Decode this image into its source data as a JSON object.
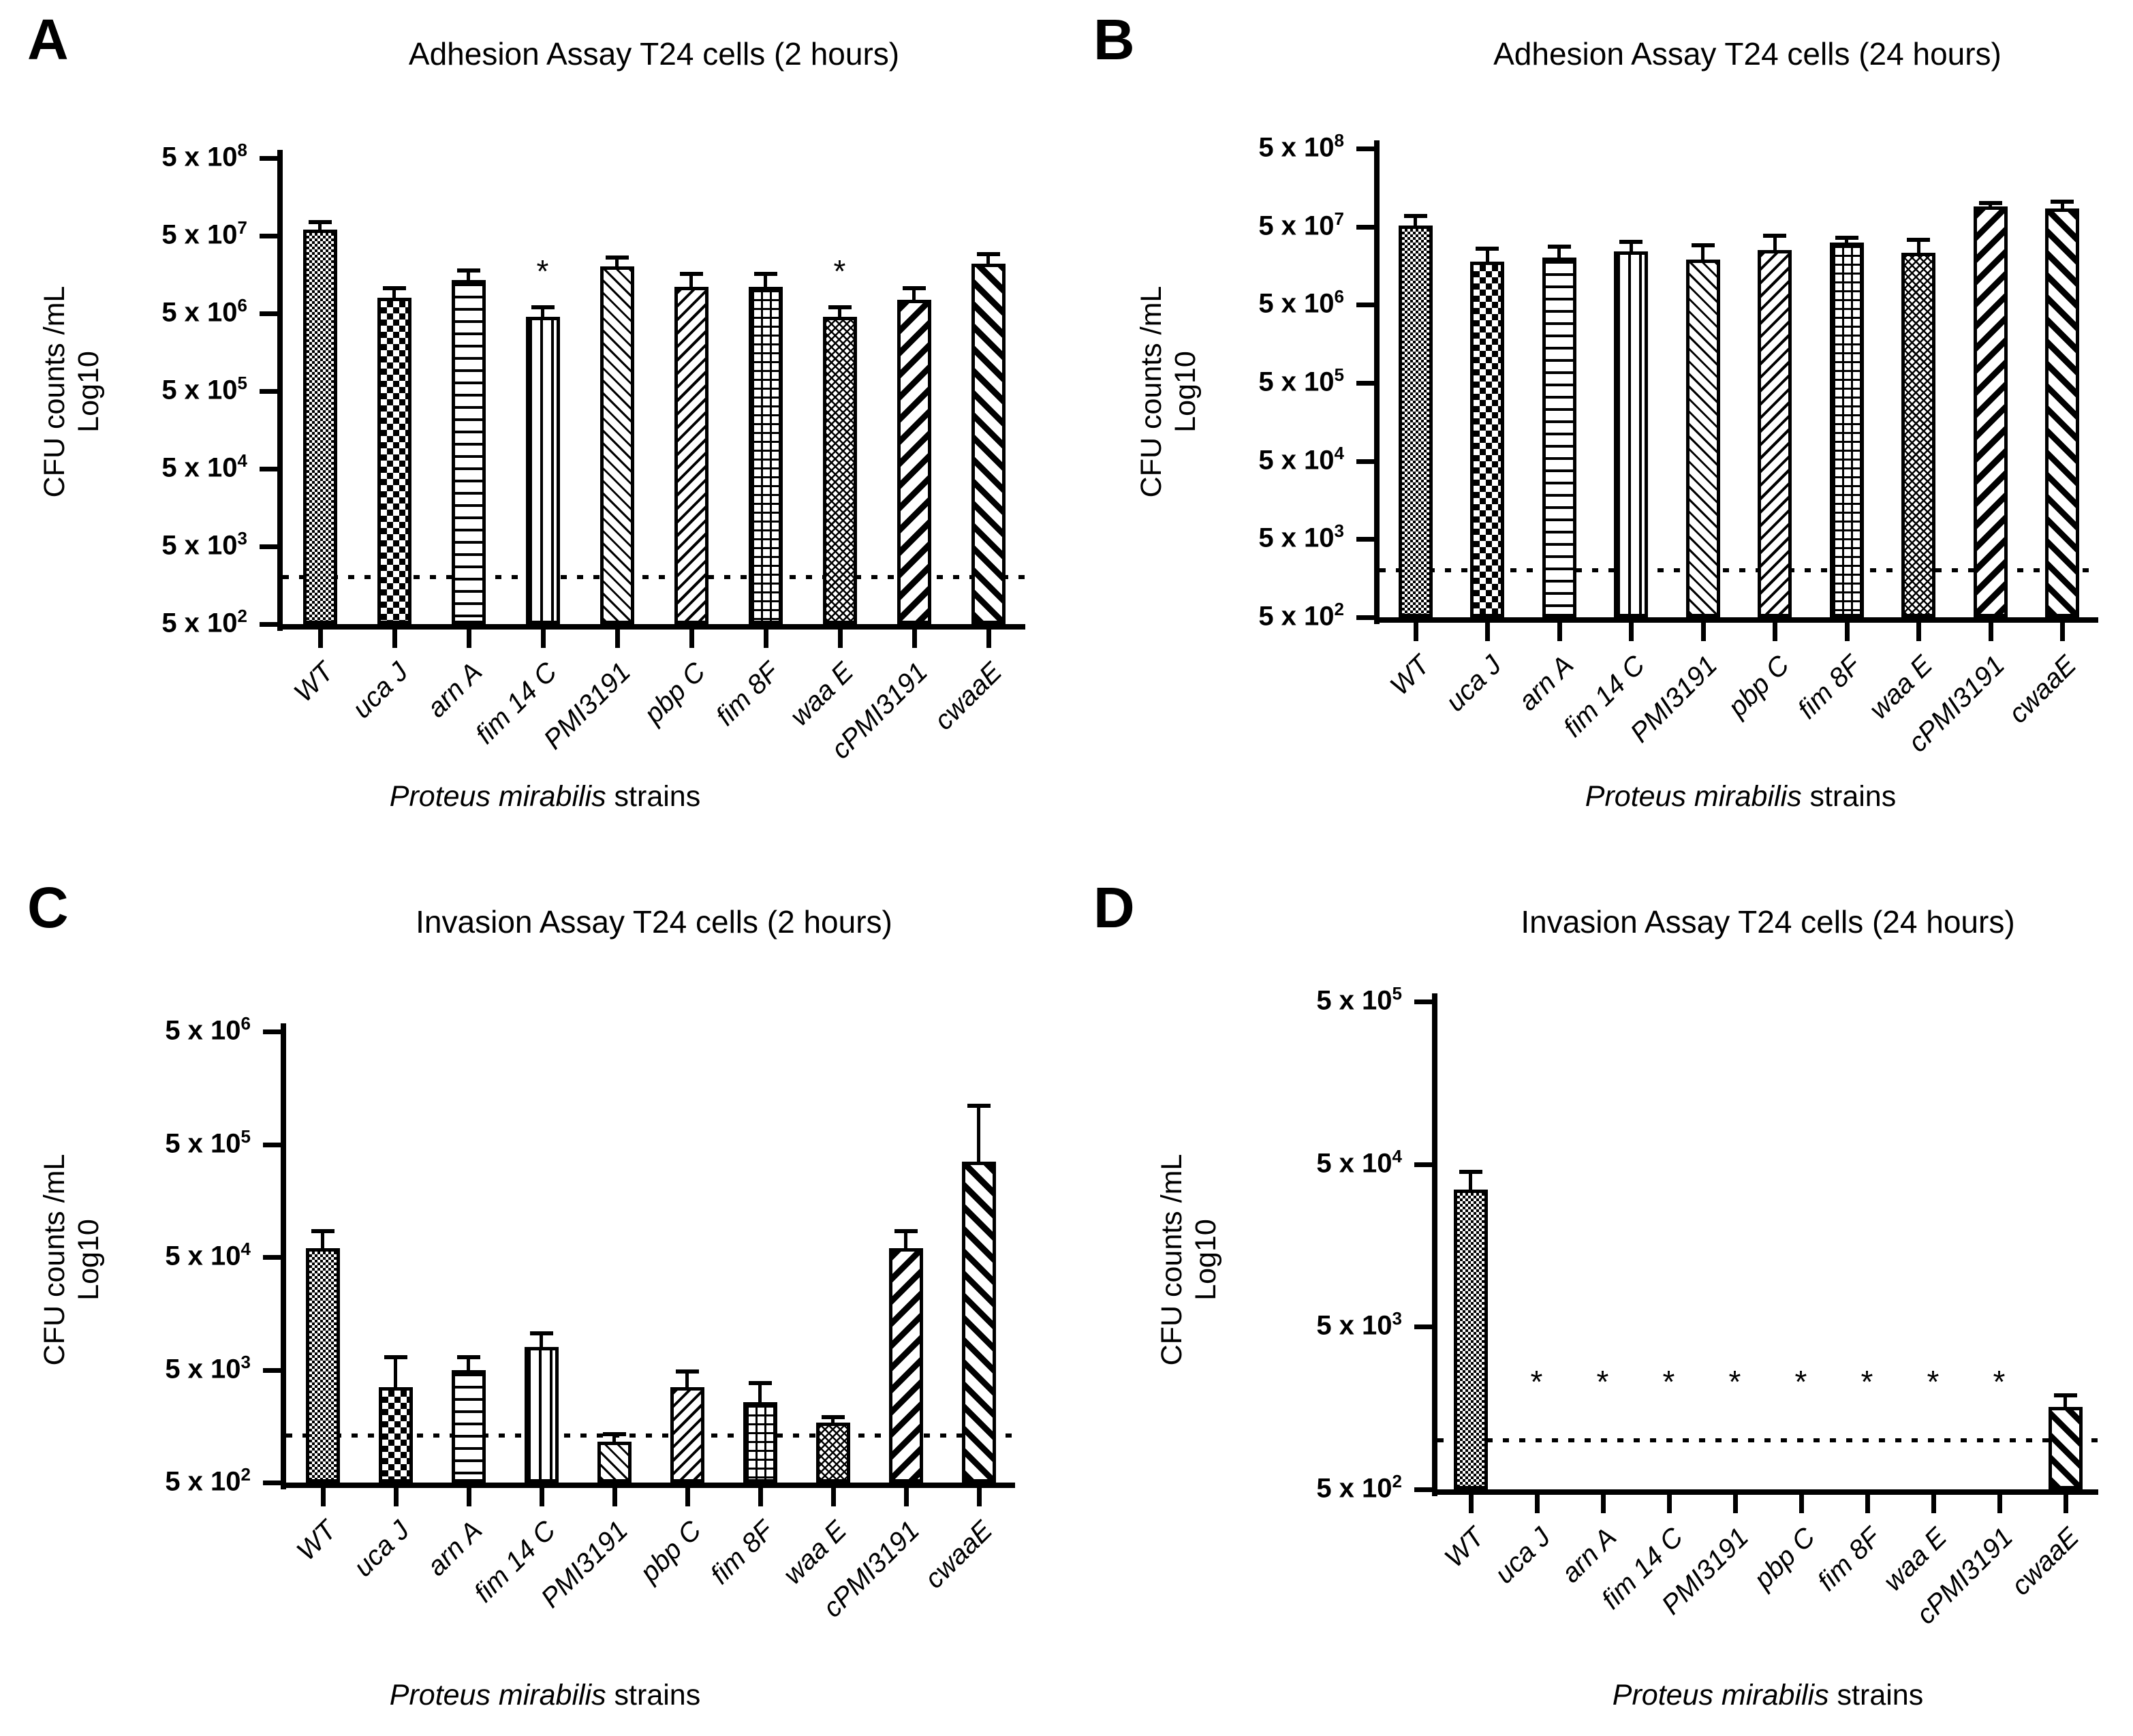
{
  "colors": {
    "ink": "#000000",
    "background": "#ffffff"
  },
  "sig_marker": "*",
  "bar_patterns": [
    "fine-check",
    "checkerboard",
    "horizontal-lines",
    "vertical-lines",
    "thin-diagonal-up",
    "diagonal-down",
    "grid",
    "diagonal-crosshatch",
    "thick-diagonal-down",
    "thick-diagonal-up"
  ],
  "chart_data": [
    {
      "type": "bar",
      "panel": "A",
      "title": "Adhesion Assay T24 cells (2 hours)",
      "ylabel": "CFU counts /mL",
      "ylabel2": "Log10",
      "xlabel_italic": "Proteus mirabilis",
      "xlabel_rest": " strains",
      "yscale": "log",
      "ymin": 500,
      "ymax": 500000000,
      "ytick_coefficient": "5 x 10",
      "ytick_exponents": [
        8,
        7,
        6,
        5,
        4,
        3,
        2
      ],
      "ytick_labels": [
        "5 x 10⁸",
        "5 x 10⁷",
        "5 x 10⁶",
        "5 x 10⁵",
        "5 x 10⁴",
        "5 x 10³",
        "5 x 10²"
      ],
      "grid": false,
      "legend": "none",
      "threshold_line": 2000,
      "categories": [
        "WT",
        "uca J",
        "arn A",
        "fim 14 C",
        "PMI3191",
        "pbp C",
        "fim 8F",
        "waa E",
        "cPMI3191",
        "cwaaE"
      ],
      "values": [
        60000000,
        8000000,
        13500000,
        4500000,
        20000000,
        11000000,
        11000000,
        4500000,
        7500000,
        22000000
      ],
      "errors_top": [
        75000000,
        10500000,
        18000000,
        6000000,
        26000000,
        16000000,
        16000000,
        6000000,
        10500000,
        29000000
      ],
      "significance": [
        false,
        false,
        false,
        true,
        false,
        false,
        false,
        true,
        false,
        false
      ]
    },
    {
      "type": "bar",
      "panel": "B",
      "title": "Adhesion Assay T24 cells (24 hours)",
      "ylabel": "CFU counts /mL",
      "ylabel2": "Log10",
      "xlabel_italic": "Proteus mirabilis",
      "xlabel_rest": " strains",
      "yscale": "log",
      "ymin": 500,
      "ymax": 500000000,
      "ytick_coefficient": "5 x 10",
      "ytick_exponents": [
        8,
        7,
        6,
        5,
        4,
        3,
        2
      ],
      "ytick_labels": [
        "5 x 10⁸",
        "5 x 10⁷",
        "5 x 10⁶",
        "5 x 10⁵",
        "5 x 10⁴",
        "5 x 10³",
        "5 x 10²"
      ],
      "grid": false,
      "legend": "none",
      "threshold_line": 2000,
      "categories": [
        "WT",
        "uca J",
        "arn A",
        "fim 14 C",
        "PMI3191",
        "pbp C",
        "fim 8F",
        "waa E",
        "cPMI3191",
        "cwaaE"
      ],
      "values": [
        52000000,
        18000000,
        20000000,
        24000000,
        19000000,
        25000000,
        31000000,
        23000000,
        90000000,
        85000000
      ],
      "errors_top": [
        68000000,
        26000000,
        28000000,
        32000000,
        29000000,
        38000000,
        36000000,
        34000000,
        100000000,
        105000000
      ],
      "significance": [
        false,
        false,
        false,
        false,
        false,
        false,
        false,
        false,
        false,
        false
      ]
    },
    {
      "type": "bar",
      "panel": "C",
      "title": "Invasion Assay T24 cells (2 hours)",
      "ylabel": "CFU counts /mL",
      "ylabel2": "Log10",
      "xlabel_italic": "Proteus mirabilis",
      "xlabel_rest": " strains",
      "yscale": "log",
      "ymin": 500,
      "ymax": 5000000,
      "ytick_coefficient": "5 x 10",
      "ytick_exponents": [
        6,
        5,
        4,
        3,
        2
      ],
      "ytick_labels": [
        "5 x 10⁶",
        "5 x 10⁵",
        "5 x 10⁴",
        "5 x 10³",
        "5 x 10²"
      ],
      "grid": false,
      "legend": "none",
      "threshold_line": 1300,
      "categories": [
        "WT",
        "uca J",
        "arn A",
        "fim 14 C",
        "PMI3191",
        "pbp C",
        "fim 8F",
        "waa E",
        "cPMI3191",
        "cwaaE"
      ],
      "values": [
        60000,
        3500,
        5000,
        8000,
        1150,
        3500,
        2600,
        1700,
        60000,
        350000
      ],
      "errors_top": [
        85000,
        6500,
        6500,
        10500,
        1350,
        4800,
        3800,
        1900,
        85000,
        1100000
      ],
      "significance": [
        false,
        false,
        false,
        false,
        false,
        false,
        false,
        false,
        false,
        false
      ]
    },
    {
      "type": "bar",
      "panel": "D",
      "title": "Invasion Assay T24 cells (24 hours)",
      "ylabel": "CFU counts /mL",
      "ylabel2": "Log10",
      "xlabel_italic": "Proteus mirabilis",
      "xlabel_rest": " strains",
      "yscale": "log",
      "ymin": 500,
      "ymax": 500000,
      "ytick_coefficient": "5 x 10",
      "ytick_exponents": [
        5,
        4,
        3,
        2
      ],
      "ytick_labels": [
        "5 x 10⁵",
        "5 x 10⁴",
        "5 x 10³",
        "5 x 10²"
      ],
      "grid": false,
      "legend": "none",
      "threshold_line": 1000,
      "categories": [
        "WT",
        "uca J",
        "arn A",
        "fim 14 C",
        "PMI3191",
        "pbp C",
        "fim 8F",
        "waa E",
        "cPMI3191",
        "cwaaE"
      ],
      "values": [
        35000,
        null,
        null,
        null,
        null,
        null,
        null,
        null,
        null,
        1600
      ],
      "errors_top": [
        45000,
        null,
        null,
        null,
        null,
        null,
        null,
        null,
        null,
        1900
      ],
      "significance": [
        false,
        true,
        true,
        true,
        true,
        true,
        true,
        true,
        true,
        false
      ]
    }
  ]
}
